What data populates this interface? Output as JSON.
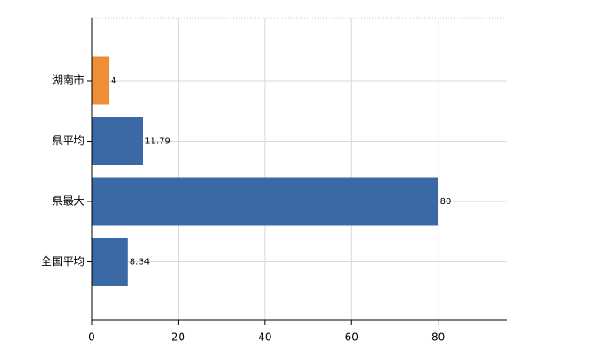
{
  "chart_data": {
    "type": "barh",
    "categories": [
      "湖南市",
      "県平均",
      "県最大",
      "全国平均"
    ],
    "values": [
      4,
      11.79,
      80,
      8.34
    ],
    "colors": [
      "#ee8f36",
      "#3b69a6",
      "#3b69a6",
      "#3b69a6"
    ],
    "xlim": [
      0,
      96
    ],
    "xticks": [
      0,
      20,
      40,
      60,
      80
    ],
    "grid": true
  }
}
